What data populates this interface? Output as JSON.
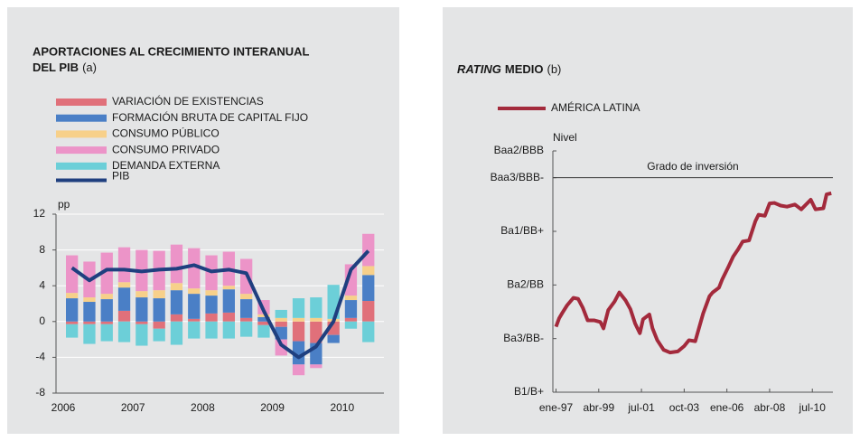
{
  "chart_data": [
    {
      "type": "stacked_bar",
      "title": [
        "APORTACIONES AL CRECIMIENTO INTERANUAL",
        "DEL PIB"
      ],
      "title_note": "(a)",
      "ylabel": "pp",
      "categories": [
        "2006",
        null,
        null,
        null,
        "2007",
        null,
        null,
        null,
        "2008",
        null,
        null,
        null,
        "2009",
        null,
        null,
        null,
        "2010",
        null
      ],
      "series": [
        {
          "name": "VARIACIÓN DE EXISTENCIAS",
          "color": "#e0707a",
          "values": [
            -0.3,
            -0.3,
            -0.3,
            1.2,
            -0.3,
            -0.8,
            0.8,
            0.3,
            0.9,
            1.0,
            0.4,
            -0.4,
            -0.6,
            -2.2,
            -2.4,
            -1.5,
            0.4,
            2.3
          ]
        },
        {
          "name": "FORMACIÓN BRUTA DE CAPITAL FIJO",
          "color": "#4a7fc6",
          "values": [
            2.6,
            2.2,
            2.5,
            2.6,
            2.7,
            2.6,
            2.7,
            2.8,
            2.0,
            2.6,
            2.1,
            0.5,
            -1.4,
            -2.6,
            -2.4,
            -0.9,
            2.0,
            2.9
          ]
        },
        {
          "name": "CONSUMO PÚBLICO",
          "color": "#f7d08a",
          "values": [
            0.6,
            0.5,
            0.6,
            0.6,
            0.7,
            0.9,
            0.8,
            0.6,
            0.6,
            0.4,
            0.6,
            0.3,
            0.4,
            0.4,
            0.4,
            0.3,
            0.5,
            1.0
          ]
        },
        {
          "name": "CONSUMO PRIVADO",
          "color": "#ec94c8",
          "values": [
            4.2,
            4.0,
            4.6,
            3.9,
            4.6,
            4.4,
            4.3,
            4.5,
            3.9,
            3.8,
            3.9,
            1.6,
            -1.8,
            -1.2,
            -0.4,
            0.0,
            3.5,
            3.6
          ]
        },
        {
          "name": "DEMANDA EXTERNA",
          "color": "#6ccfd8",
          "values": [
            -1.5,
            -2.2,
            -1.9,
            -2.3,
            -2.4,
            -1.4,
            -2.6,
            -1.9,
            -1.9,
            -1.9,
            -1.7,
            -1.4,
            0.9,
            2.2,
            2.3,
            3.8,
            -0.8,
            -2.3
          ]
        }
      ],
      "line": {
        "name": "PIB",
        "color": "#1f3f7f",
        "values": [
          6.0,
          4.6,
          5.8,
          5.8,
          5.6,
          5.8,
          5.9,
          6.3,
          5.6,
          5.8,
          5.4,
          1.2,
          -2.6,
          -4.0,
          -2.8,
          0.0,
          5.8,
          7.9
        ]
      },
      "ylim": [
        -8,
        12
      ],
      "yticks": [
        -8,
        -4,
        0,
        4,
        8,
        12
      ],
      "grid": true
    },
    {
      "type": "line",
      "title_italic": "RATING",
      "title": "MEDIO",
      "title_note": "(b)",
      "ylabel": "Nivel",
      "series": [
        {
          "name": "AMÉRICA LATINA",
          "color": "#a32a3c",
          "x": [
            0,
            2,
            4,
            7,
            11,
            14,
            17,
            20,
            24,
            28,
            30,
            33,
            37,
            40,
            44,
            47,
            50,
            53,
            55,
            59,
            61,
            64,
            68,
            72,
            77,
            81,
            84,
            88,
            93,
            97,
            99,
            103,
            105,
            109,
            112,
            115,
            118,
            122,
            126,
            128,
            132,
            135,
            138,
            142,
            146,
            151,
            155,
            161,
            164,
            169,
            171,
            174
          ],
          "values": [
            1.22,
            1.38,
            1.48,
            1.62,
            1.76,
            1.74,
            1.57,
            1.34,
            1.34,
            1.31,
            1.19,
            1.53,
            1.69,
            1.86,
            1.71,
            1.55,
            1.28,
            1.1,
            1.36,
            1.45,
            1.19,
            0.97,
            0.79,
            0.74,
            0.76,
            0.86,
            0.97,
            0.95,
            1.47,
            1.79,
            1.86,
            1.95,
            2.1,
            2.34,
            2.53,
            2.66,
            2.81,
            2.83,
            3.19,
            3.31,
            3.29,
            3.52,
            3.53,
            3.48,
            3.46,
            3.5,
            3.41,
            3.59,
            3.41,
            3.43,
            3.69,
            3.71
          ]
        }
      ],
      "annotations": [
        {
          "text": "Grado de inversión",
          "y": 4
        }
      ],
      "xlim": [
        -2,
        175
      ],
      "xticks": [
        {
          "value": 0,
          "label": "ene-97"
        },
        {
          "value": 27,
          "label": "abr-99"
        },
        {
          "value": 54,
          "label": "jul-01"
        },
        {
          "value": 81,
          "label": "oct-03"
        },
        {
          "value": 108,
          "label": "ene-06"
        },
        {
          "value": 135,
          "label": "abr-08"
        },
        {
          "value": 162,
          "label": "jul-10"
        }
      ],
      "ylim": [
        0,
        4.5
      ],
      "yticks": [
        {
          "value": 0,
          "label": "B1/B+"
        },
        {
          "value": 1,
          "label": "Ba3/BB-"
        },
        {
          "value": 2,
          "label": "Ba2/BB"
        },
        {
          "value": 3,
          "label": "Ba1/BB+"
        },
        {
          "value": 4,
          "label": "Baa3/BBB-"
        },
        {
          "value": 4.5,
          "label": "Baa2/BBB"
        }
      ],
      "grid": false
    }
  ]
}
